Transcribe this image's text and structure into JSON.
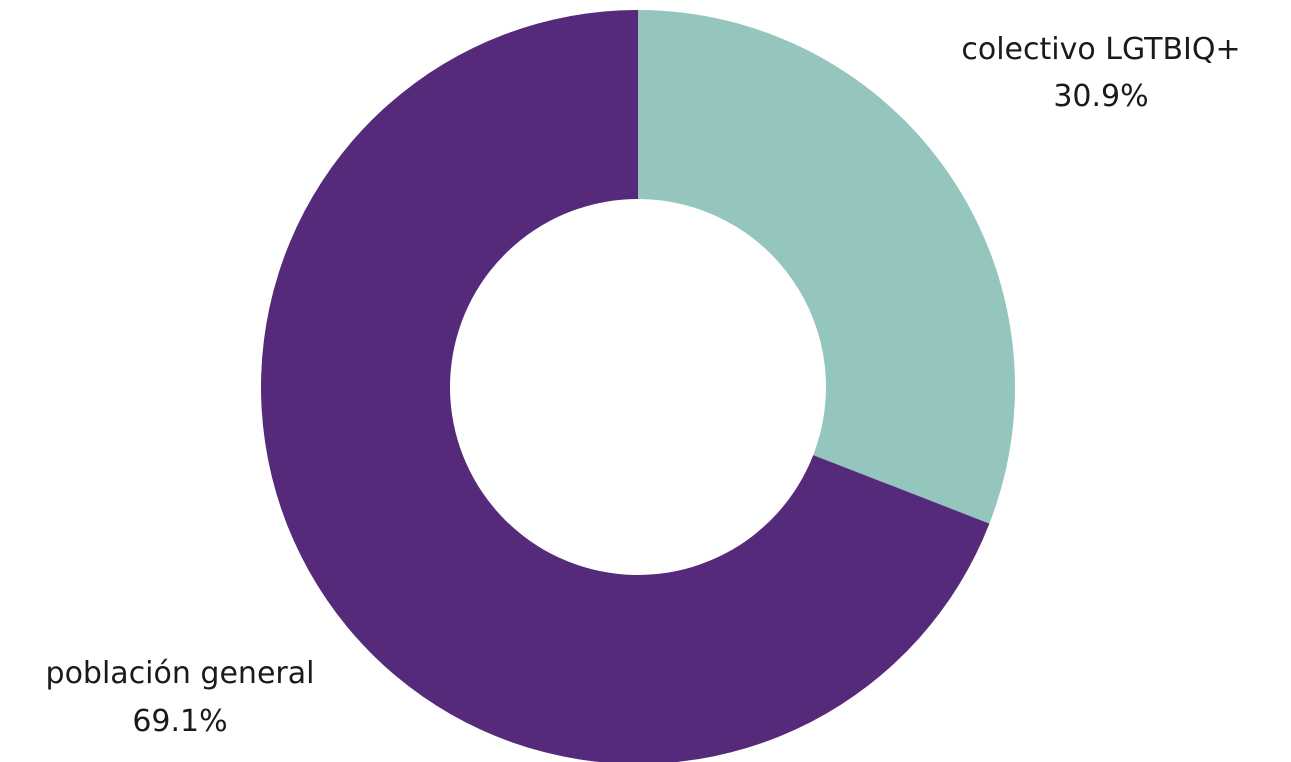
{
  "chart_data": {
    "type": "pie",
    "donut": true,
    "categories": [
      "colectivo LGTBIQ+",
      "población general"
    ],
    "values": [
      30.9,
      69.1
    ],
    "value_labels": [
      "30.9%",
      "69.1%"
    ],
    "colors": [
      "#94c6be",
      "#562a7a"
    ],
    "start_angle_deg": 0,
    "direction": "clockwise",
    "title": "",
    "legend": "none"
  }
}
